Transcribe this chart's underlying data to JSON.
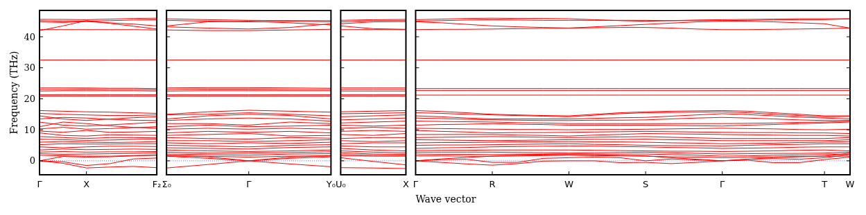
{
  "chart_data": [
    {
      "type": "line",
      "ylabel": "Frequency (THz)",
      "color": "#ff0000",
      "categories": [
        "Γ",
        null,
        "X",
        null,
        null,
        "F₂"
      ],
      "ylim": [
        -4.5,
        48.5
      ],
      "yticks": [
        0,
        10,
        20,
        30,
        40
      ],
      "ref_lines": [
        {
          "axis": "y",
          "value": 0,
          "color": "#0000ff",
          "line_style": "dotted"
        }
      ],
      "series": [
        {
          "values": [
            45.6,
            45.6,
            45.5,
            45.7,
            45.9,
            46.0
          ]
        },
        {
          "values": [
            45.2,
            45.0,
            45.0,
            45.2,
            45.4,
            45.5
          ]
        },
        {
          "values": [
            44.8,
            44.6,
            44.9,
            44.5,
            44.1,
            43.5
          ]
        },
        {
          "values": [
            42.0,
            43.5,
            45.2,
            44.3,
            43.4,
            42.5
          ]
        },
        {
          "values": [
            42.3,
            42.3,
            42.3,
            42.3,
            42.3,
            42.2
          ]
        },
        {
          "values": [
            32.5,
            32.5,
            32.5,
            32.5,
            32.5,
            32.5
          ]
        },
        {
          "values": [
            23.5,
            23.5,
            23.5,
            23.4,
            23.4,
            23.3
          ]
        },
        {
          "values": [
            23.0,
            23.0,
            23.1,
            23.0,
            23.0,
            22.9
          ]
        },
        {
          "values": [
            22.5,
            22.6,
            22.6,
            22.6,
            22.6,
            22.5
          ]
        },
        {
          "values": [
            21.3,
            21.3,
            21.3,
            21.3,
            21.3,
            21.3
          ]
        },
        {
          "values": [
            20.9,
            20.9,
            20.9,
            20.9,
            20.9,
            20.9
          ]
        },
        {
          "values": [
            16.2,
            16.0,
            15.8,
            15.7,
            15.5,
            15.3
          ]
        },
        {
          "values": [
            15.3,
            15.0,
            14.8,
            14.6,
            14.6,
            14.8
          ]
        },
        {
          "values": [
            14.5,
            13.5,
            13.0,
            13.5,
            13.9,
            14.2
          ]
        },
        {
          "values": [
            13.5,
            14.0,
            13.8,
            13.4,
            13.1,
            13.0
          ]
        },
        {
          "values": [
            12.5,
            11.5,
            11.2,
            11.6,
            12.0,
            12.5
          ]
        },
        {
          "values": [
            11.0,
            12.5,
            12.0,
            11.3,
            10.8,
            10.5
          ]
        },
        {
          "values": [
            10.3,
            10.8,
            10.2,
            10.4,
            10.7,
            11.0
          ]
        },
        {
          "values": [
            9.6,
            9.2,
            9.8,
            9.2,
            9.3,
            9.5
          ]
        },
        {
          "values": [
            9.0,
            8.2,
            8.0,
            8.4,
            8.3,
            8.2
          ]
        },
        {
          "values": [
            7.8,
            7.5,
            7.2,
            7.5,
            7.5,
            7.4
          ]
        },
        {
          "values": [
            7.0,
            6.8,
            6.6,
            6.7,
            6.9,
            7.0
          ]
        },
        {
          "values": [
            6.0,
            6.2,
            6.0,
            5.9,
            6.0,
            6.2
          ]
        },
        {
          "values": [
            5.2,
            5.5,
            5.4,
            5.4,
            5.5,
            5.5
          ]
        },
        {
          "values": [
            4.5,
            4.2,
            4.5,
            4.7,
            4.7,
            4.6
          ]
        },
        {
          "values": [
            3.5,
            3.8,
            3.6,
            3.7,
            3.8,
            3.7
          ]
        },
        {
          "values": [
            2.8,
            3.0,
            2.8,
            2.9,
            2.9,
            3.0
          ]
        },
        {
          "values": [
            2.3,
            2.1,
            2.2,
            2.3,
            2.4,
            2.5
          ]
        },
        {
          "values": [
            1.8,
            1.6,
            1.5,
            1.5,
            1.7,
            1.8
          ]
        },
        {
          "values": [
            0,
            -0.8,
            -2.3,
            -2.0,
            -1.8,
            -2.2
          ]
        },
        {
          "values": [
            0,
            -0.3,
            -1.5,
            -0.9,
            0.6,
            0.9
          ]
        },
        {
          "values": [
            0,
            1.4,
            1.2,
            1.3,
            1.6,
            1.9
          ]
        }
      ]
    },
    {
      "type": "line",
      "color": "#ff0000",
      "tick_labels": "x",
      "categories": [
        "Σ₀",
        null,
        "Γ",
        null,
        "Y₀"
      ],
      "ylim": [
        -4.5,
        48.5
      ],
      "yticks": [
        0,
        10,
        20,
        30,
        40
      ],
      "ref_lines": [
        {
          "axis": "y",
          "value": 0,
          "color": "#0000ff",
          "line_style": "dotted"
        }
      ],
      "series": [
        {
          "values": [
            45.8,
            45.5,
            45.3,
            45.2,
            45.2
          ]
        },
        {
          "values": [
            45.3,
            45.0,
            44.8,
            45.0,
            44.8
          ]
        },
        {
          "values": [
            43.5,
            44.8,
            45.0,
            44.5,
            43.8
          ]
        },
        {
          "values": [
            43.2,
            42.8,
            42.5,
            43.0,
            44.2
          ]
        },
        {
          "values": [
            42.2,
            42.0,
            42.0,
            42.2,
            42.4
          ]
        },
        {
          "values": [
            32.5,
            32.5,
            32.5,
            32.5,
            32.5
          ]
        },
        {
          "values": [
            23.5,
            23.6,
            23.6,
            23.5,
            23.4
          ]
        },
        {
          "values": [
            23.0,
            23.1,
            23.1,
            23.0,
            23.0
          ]
        },
        {
          "values": [
            22.5,
            22.6,
            22.6,
            22.6,
            22.6
          ]
        },
        {
          "values": [
            21.3,
            21.3,
            21.3,
            21.3,
            21.3
          ]
        },
        {
          "values": [
            20.9,
            20.9,
            20.9,
            20.9,
            20.9
          ]
        },
        {
          "values": [
            15.0,
            15.8,
            16.3,
            16.0,
            15.7
          ]
        },
        {
          "values": [
            14.8,
            15.0,
            15.5,
            15.0,
            14.5
          ]
        },
        {
          "values": [
            13.5,
            14.5,
            15.0,
            14.6,
            13.5
          ]
        },
        {
          "values": [
            13.0,
            13.5,
            13.8,
            13.5,
            12.8
          ]
        },
        {
          "values": [
            12.0,
            12.0,
            11.5,
            12.5,
            12.0
          ]
        },
        {
          "values": [
            11.0,
            11.5,
            11.0,
            11.2,
            11.5
          ]
        },
        {
          "values": [
            10.2,
            10.5,
            10.2,
            10.5,
            10.2
          ]
        },
        {
          "values": [
            9.0,
            9.5,
            9.2,
            9.5,
            9.0
          ]
        },
        {
          "values": [
            8.2,
            8.5,
            8.8,
            8.0,
            8.2
          ]
        },
        {
          "values": [
            7.5,
            7.2,
            7.0,
            7.5,
            7.3
          ]
        },
        {
          "values": [
            6.5,
            6.5,
            6.2,
            6.5,
            6.8
          ]
        },
        {
          "values": [
            5.8,
            5.5,
            5.8,
            5.6,
            6.0
          ]
        },
        {
          "values": [
            5.0,
            4.8,
            4.5,
            5.0,
            5.2
          ]
        },
        {
          "values": [
            4.2,
            4.0,
            3.8,
            4.3,
            4.5
          ]
        },
        {
          "values": [
            3.5,
            3.2,
            3.0,
            3.2,
            3.5
          ]
        },
        {
          "values": [
            2.8,
            2.5,
            2.5,
            2.7,
            2.9
          ]
        },
        {
          "values": [
            2.2,
            2.0,
            1.8,
            2.2,
            2.3
          ]
        },
        {
          "values": [
            1.6,
            1.5,
            1.2,
            1.5,
            1.6
          ]
        },
        {
          "values": [
            -2.3,
            -1.2,
            0,
            -1.0,
            -1.9
          ]
        },
        {
          "values": [
            1.5,
            0.8,
            0,
            0.8,
            1.3
          ]
        },
        {
          "values": [
            1.8,
            1.3,
            0,
            1.2,
            1.7
          ]
        }
      ]
    },
    {
      "type": "line",
      "color": "#ff0000",
      "tick_labels": "x",
      "categories": [
        "U₀",
        null,
        "X"
      ],
      "ylim": [
        -4.5,
        48.5
      ],
      "yticks": [
        0,
        10,
        20,
        30,
        40
      ],
      "ref_lines": [
        {
          "axis": "y",
          "value": 0,
          "color": "#0000ff",
          "line_style": "dotted"
        }
      ],
      "series": [
        {
          "values": [
            45.3,
            45.5,
            45.6
          ]
        },
        {
          "values": [
            44.8,
            45.2,
            45.2
          ]
        },
        {
          "values": [
            44.2,
            44.8,
            44.9
          ]
        },
        {
          "values": [
            43.5,
            42.6,
            42.4
          ]
        },
        {
          "values": [
            42.3,
            42.3,
            42.3
          ]
        },
        {
          "values": [
            32.5,
            32.5,
            32.5
          ]
        },
        {
          "values": [
            23.5,
            23.5,
            23.5
          ]
        },
        {
          "values": [
            23.0,
            23.0,
            23.0
          ]
        },
        {
          "values": [
            22.5,
            22.5,
            22.5
          ]
        },
        {
          "values": [
            21.3,
            21.3,
            21.3
          ]
        },
        {
          "values": [
            20.9,
            20.9,
            20.9
          ]
        },
        {
          "values": [
            15.8,
            16.0,
            16.2
          ]
        },
        {
          "values": [
            15.2,
            15.3,
            15.5
          ]
        },
        {
          "values": [
            14.2,
            14.5,
            14.8
          ]
        },
        {
          "values": [
            13.2,
            13.5,
            13.8
          ]
        },
        {
          "values": [
            12.2,
            12.5,
            12.8
          ]
        },
        {
          "values": [
            11.5,
            11.2,
            11.5
          ]
        },
        {
          "values": [
            10.5,
            10.8,
            10.5
          ]
        },
        {
          "values": [
            9.5,
            9.8,
            9.5
          ]
        },
        {
          "values": [
            8.5,
            8.2,
            8.8
          ]
        },
        {
          "values": [
            7.2,
            7.5,
            7.5
          ]
        },
        {
          "values": [
            6.5,
            6.2,
            6.5
          ]
        },
        {
          "values": [
            5.5,
            5.8,
            5.8
          ]
        },
        {
          "values": [
            4.8,
            4.5,
            4.5
          ]
        },
        {
          "values": [
            4.0,
            3.5,
            3.2
          ]
        },
        {
          "values": [
            3.2,
            2.8,
            2.6
          ]
        },
        {
          "values": [
            2.6,
            2.2,
            2.1
          ]
        },
        {
          "values": [
            2.0,
            1.8,
            1.7
          ]
        },
        {
          "values": [
            1.6,
            1.5,
            1.5
          ]
        },
        {
          "values": [
            -2.2,
            -2.3,
            -2.5
          ]
        },
        {
          "values": [
            1.0,
            -0.2,
            -1.3
          ]
        }
      ]
    },
    {
      "type": "line",
      "xlabel": "Wave vector",
      "color": "#ff0000",
      "tick_labels": "x",
      "categories": [
        "Γ",
        null,
        null,
        "R",
        null,
        null,
        "W",
        null,
        null,
        "S",
        null,
        null,
        "Γ",
        null,
        null,
        null,
        "T",
        "W"
      ],
      "ylim": [
        -4.5,
        48.5
      ],
      "yticks": [
        0,
        10,
        20,
        30,
        40
      ],
      "ref_lines": [
        {
          "axis": "y",
          "value": 0,
          "color": "#0000ff",
          "line_style": "dotted"
        }
      ],
      "series": [
        {
          "values": [
            45.5,
            45.7,
            45.9,
            46.0,
            45.9,
            45.9,
            45.8,
            45.5,
            45.2,
            45.0,
            45.2,
            45.4,
            45.5,
            45.6,
            45.7,
            45.8,
            45.8,
            45.8
          ]
        },
        {
          "values": [
            45.0,
            45.2,
            45.4,
            45.5,
            45.4,
            45.3,
            45.3,
            45.3,
            45.3,
            45.3,
            45.2,
            45.2,
            45.2,
            45.3,
            45.4,
            45.5,
            45.5,
            45.8
          ]
        },
        {
          "values": [
            44.8,
            44.5,
            44.0,
            43.5,
            43.2,
            43.0,
            42.8,
            43.2,
            43.6,
            44.0,
            44.4,
            44.8,
            45.0,
            45.0,
            44.8,
            44.5,
            44.2,
            42.8
          ]
        },
        {
          "values": [
            42.3,
            42.4,
            42.4,
            42.5,
            42.6,
            42.7,
            42.8,
            42.9,
            43.0,
            43.0,
            42.8,
            42.5,
            42.3,
            42.3,
            42.4,
            42.5,
            42.6,
            42.8
          ]
        },
        {
          "values": [
            32.5,
            32.5,
            32.5,
            32.5,
            32.5,
            32.5,
            32.5,
            32.5,
            32.5,
            32.5,
            32.5,
            32.5,
            32.5,
            32.5,
            32.5,
            32.5,
            32.5,
            32.5
          ]
        },
        {
          "values": [
            23.3,
            23.3,
            23.3,
            23.3,
            23.3,
            23.3,
            23.3,
            23.3,
            23.3,
            23.3,
            23.3,
            23.3,
            23.3,
            23.3,
            23.3,
            23.3,
            23.3,
            23.3
          ]
        },
        {
          "values": [
            22.7,
            22.7,
            22.7,
            22.7,
            22.7,
            22.7,
            22.7,
            22.7,
            22.7,
            22.7,
            22.7,
            22.7,
            22.7,
            22.7,
            22.7,
            22.7,
            22.7,
            22.7
          ]
        },
        {
          "values": [
            21.2,
            21.2,
            21.2,
            21.2,
            21.2,
            21.2,
            21.2,
            21.2,
            21.2,
            21.2,
            21.2,
            21.2,
            21.2,
            21.2,
            21.2,
            21.2,
            21.2,
            21.2
          ]
        },
        {
          "values": [
            16.2,
            15.9,
            15.5,
            15.0,
            14.8,
            14.6,
            14.5,
            15.0,
            15.5,
            15.8,
            16.0,
            16.1,
            16.2,
            16.0,
            15.5,
            15.0,
            14.5,
            14.5
          ]
        },
        {
          "values": [
            15.5,
            15.3,
            15.0,
            14.8,
            14.6,
            14.4,
            14.2,
            14.7,
            15.2,
            15.5,
            15.6,
            15.7,
            15.8,
            15.5,
            15.0,
            14.6,
            14.2,
            14.3
          ]
        },
        {
          "values": [
            14.5,
            14.2,
            13.8,
            13.5,
            13.5,
            13.5,
            13.5,
            13.7,
            13.9,
            14.0,
            14.4,
            14.8,
            15.2,
            14.9,
            14.5,
            14.1,
            13.8,
            13.5
          ]
        },
        {
          "values": [
            13.8,
            13.6,
            13.4,
            13.2,
            13.1,
            13.0,
            13.0,
            13.1,
            13.1,
            13.2,
            13.5,
            13.8,
            14.0,
            13.8,
            13.5,
            13.2,
            13.0,
            13.0
          ]
        },
        {
          "values": [
            12.8,
            12.7,
            12.6,
            12.5,
            12.3,
            12.2,
            12.0,
            12.0,
            12.0,
            12.0,
            12.0,
            12.0,
            12.0,
            12.1,
            12.2,
            12.4,
            12.5,
            12.8
          ]
        },
        {
          "values": [
            11.5,
            11.7,
            11.8,
            12.0,
            11.8,
            11.7,
            11.5,
            11.5,
            11.5,
            11.5,
            11.4,
            11.3,
            11.2,
            11.5,
            11.7,
            12.0,
            12.2,
            12.5
          ]
        },
        {
          "values": [
            10.5,
            10.4,
            10.3,
            10.2,
            10.1,
            10.1,
            10.0,
            10.1,
            10.1,
            10.2,
            10.3,
            10.4,
            10.5,
            10.4,
            10.3,
            10.1,
            10.0,
            10.2
          ]
        },
        {
          "values": [
            9.8,
            9.5,
            9.3,
            9.0,
            9.1,
            9.1,
            9.2,
            9.3,
            9.4,
            9.5,
            9.4,
            9.3,
            9.2,
            9.1,
            9.1,
            9.0,
            9.0,
            8.8
          ]
        },
        {
          "values": [
            8.5,
            8.5,
            8.5,
            8.5,
            8.3,
            8.2,
            8.0,
            8.3,
            8.5,
            8.8,
            8.7,
            8.6,
            8.5,
            8.4,
            8.3,
            8.2,
            8.2,
            8.0
          ]
        },
        {
          "values": [
            7.5,
            7.6,
            7.7,
            7.8,
            7.7,
            7.6,
            7.5,
            7.6,
            7.7,
            7.8,
            7.6,
            7.4,
            7.2,
            7.2,
            7.2,
            7.2,
            7.2,
            7.5
          ]
        },
        {
          "values": [
            6.8,
            6.7,
            6.6,
            6.5,
            6.6,
            6.7,
            6.8,
            6.9,
            6.9,
            7.0,
            6.8,
            6.7,
            6.5,
            6.5,
            6.5,
            6.5,
            6.5,
            6.8
          ]
        },
        {
          "values": [
            5.8,
            5.9,
            5.9,
            6.0,
            6.1,
            6.1,
            6.2,
            6.1,
            6.1,
            6.0,
            5.8,
            5.7,
            5.5,
            5.6,
            5.7,
            5.9,
            6.0,
            6.2
          ]
        },
        {
          "values": [
            5.0,
            5.1,
            5.1,
            5.2,
            5.3,
            5.4,
            5.5,
            5.3,
            5.2,
            5.0,
            4.9,
            4.9,
            4.8,
            5.0,
            5.2,
            5.3,
            5.5,
            5.5
          ]
        },
        {
          "values": [
            4.0,
            4.2,
            4.3,
            4.5,
            4.6,
            4.7,
            4.8,
            4.7,
            4.6,
            4.5,
            4.3,
            4.2,
            4.0,
            4.1,
            4.2,
            4.4,
            4.5,
            4.5
          ]
        },
        {
          "values": [
            3.3,
            3.4,
            3.4,
            3.5,
            3.5,
            3.5,
            3.5,
            3.4,
            3.3,
            3.2,
            3.1,
            3.1,
            3.0,
            3.1,
            3.2,
            3.4,
            3.5,
            3.2
          ]
        },
        {
          "values": [
            2.8,
            2.8,
            2.8,
            2.8,
            2.7,
            2.6,
            2.5,
            2.6,
            2.7,
            2.8,
            2.6,
            2.4,
            2.2,
            2.3,
            2.4,
            2.4,
            2.5,
            2.8
          ]
        },
        {
          "values": [
            2.2,
            2.1,
            2.1,
            2.0,
            2.1,
            2.1,
            2.2,
            2.2,
            2.2,
            2.2,
            2.0,
            1.8,
            1.5,
            1.6,
            1.8,
            1.9,
            2.0,
            2.2
          ]
        },
        {
          "values": [
            1.6,
            1.6,
            1.5,
            1.5,
            1.6,
            1.7,
            1.8,
            1.7,
            1.6,
            1.5,
            1.3,
            1.2,
            1.0,
            1.1,
            1.3,
            1.4,
            1.5,
            1.5
          ]
        },
        {
          "values": [
            0,
            -0.5,
            -1.0,
            -1.4,
            -0.9,
            -0.1,
            0,
            0,
            -0.6,
            -0.5,
            -0.9,
            -0.5,
            0,
            0.2,
            -0.6,
            -0.6,
            0.4,
            1.2
          ]
        },
        {
          "values": [
            0,
            0.4,
            0.5,
            -0.5,
            -0.5,
            0.8,
            1.0,
            1.2,
            1.0,
            0,
            0.6,
            0.3,
            0,
            0.5,
            0.7,
            0.5,
            1.0,
            2.0
          ]
        },
        {
          "values": [
            0,
            0.6,
            1.1,
            1.5,
            1.7,
            1.9,
            2.0,
            1.9,
            1.8,
            1.6,
            1.0,
            0.5,
            0,
            0.5,
            1.0,
            1.3,
            1.5,
            2.5
          ]
        }
      ]
    }
  ]
}
